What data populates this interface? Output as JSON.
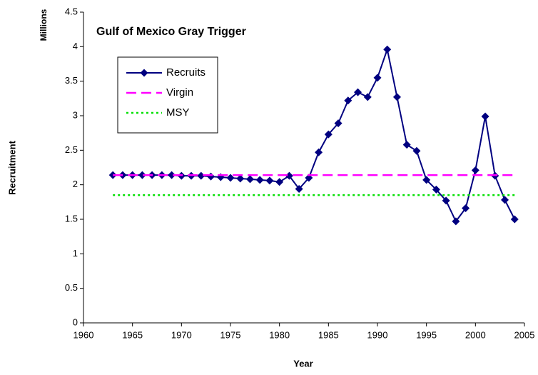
{
  "chart_data": {
    "type": "line",
    "title": "Gulf of Mexico Gray Trigger",
    "unit_label": "Millions",
    "x_label": "Year",
    "y_label": "Recruitment",
    "xlim": [
      1960,
      2005
    ],
    "xticks": [
      1960,
      1965,
      1970,
      1975,
      1980,
      1985,
      1990,
      1995,
      2000,
      2005
    ],
    "ylim": [
      0,
      4.5
    ],
    "yticks": [
      0,
      0.5,
      1,
      1.5,
      2,
      2.5,
      3,
      3.5,
      4,
      4.5
    ],
    "legend": "upper left",
    "series": [
      {
        "name": "Recruits",
        "color": "#000080",
        "style": "solid",
        "marker": "diamond",
        "x": [
          1963,
          1964,
          1965,
          1966,
          1967,
          1968,
          1969,
          1970,
          1971,
          1972,
          1973,
          1974,
          1975,
          1976,
          1977,
          1978,
          1979,
          1980,
          1981,
          1982,
          1983,
          1984,
          1985,
          1986,
          1987,
          1988,
          1989,
          1990,
          1991,
          1992,
          1993,
          1994,
          1995,
          1996,
          1997,
          1998,
          1999,
          2000,
          2001,
          2002,
          2003,
          2004
        ],
        "values": [
          2.14,
          2.14,
          2.14,
          2.14,
          2.14,
          2.14,
          2.14,
          2.13,
          2.13,
          2.13,
          2.12,
          2.11,
          2.1,
          2.09,
          2.08,
          2.07,
          2.06,
          2.04,
          2.13,
          1.94,
          2.1,
          2.47,
          2.73,
          2.89,
          3.22,
          3.34,
          3.27,
          3.55,
          3.96,
          3.27,
          2.58,
          2.49,
          2.07,
          1.93,
          1.77,
          1.47,
          1.66,
          2.21,
          2.99,
          2.13,
          1.78,
          1.5
        ]
      },
      {
        "name": "Virgin",
        "color": "#ff00ff",
        "style": "dashed",
        "marker": "none",
        "x": [
          1963,
          2004
        ],
        "values": [
          2.14,
          2.14
        ]
      },
      {
        "name": "MSY",
        "color": "#00e000",
        "style": "dotted",
        "marker": "none",
        "x": [
          1963,
          2004
        ],
        "values": [
          1.85,
          1.85
        ]
      }
    ]
  }
}
